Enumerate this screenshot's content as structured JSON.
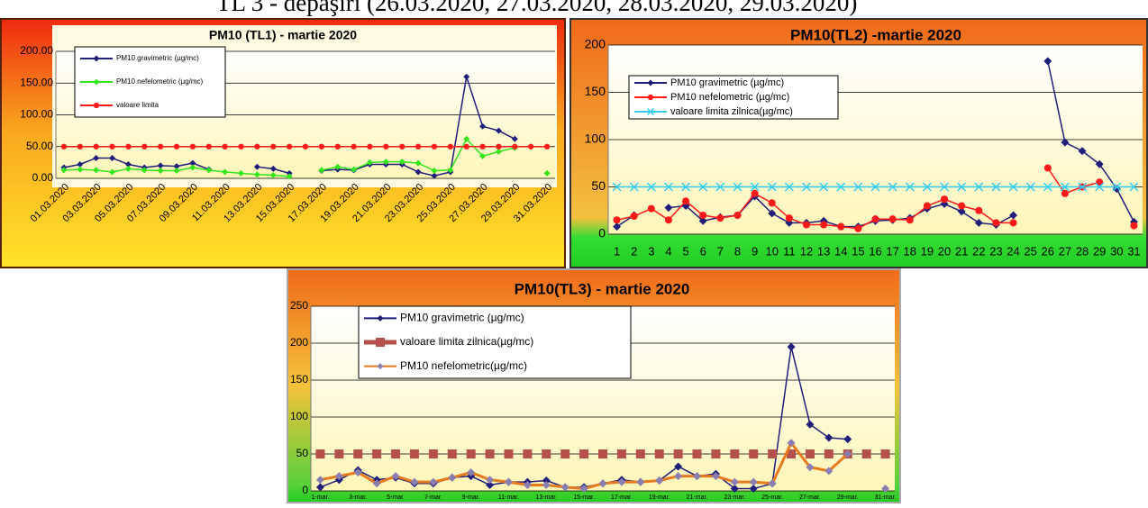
{
  "caption": "TL 3 - depaşiri (26.03.2020, 27.03.2020, 28.03.2020, 29.03.2020)",
  "chart_data": [
    {
      "type": "line",
      "title": "PM10 (TL1) -  martie 2020",
      "categories": [
        "01.03.2020",
        null,
        "03.03.2020",
        null,
        "05.03.2020",
        null,
        "07.03.2020",
        null,
        "09.03.2020",
        null,
        "11.03.2020",
        null,
        "13.03.2020",
        null,
        "15.03.2020",
        null,
        "17.03.2020",
        null,
        "19.03.2020",
        null,
        "21.03.2020",
        null,
        "23.03.2020",
        null,
        "25.03.2020",
        null,
        "27.03.2020",
        null,
        "29.03.2020",
        null,
        "31.03.2020"
      ],
      "ylim": [
        0,
        200
      ],
      "yticks": [
        {
          "value": 0,
          "label": "0.00"
        },
        {
          "value": 50,
          "label": "50.00"
        },
        {
          "value": 100,
          "label": "100.00"
        },
        {
          "value": 150,
          "label": "150.00"
        },
        {
          "value": 200,
          "label": "200.00"
        }
      ],
      "grid": true,
      "series": [
        {
          "name": "PM10   gravimetric  (µg/mc)",
          "color": "#1f1f7a",
          "marker": "diamond",
          "values": [
            17,
            22,
            32,
            32,
            22,
            17,
            20,
            19,
            24,
            14,
            null,
            null,
            18,
            15,
            8,
            null,
            12,
            14,
            13,
            22,
            22,
            22,
            10,
            4,
            10,
            160,
            82,
            75,
            62,
            null,
            null
          ]
        },
        {
          "name": "PM10 nefelometric (µg/mc)",
          "color": "#33e61a",
          "marker": "diamond",
          "values": [
            13,
            14,
            13,
            10,
            15,
            13,
            12,
            12,
            17,
            13,
            10,
            8,
            6,
            5,
            3,
            null,
            13,
            18,
            14,
            25,
            26,
            26,
            24,
            12,
            13,
            62,
            35,
            42,
            48,
            null,
            8
          ]
        },
        {
          "name": "valoare limita",
          "color": "#ff1a1a",
          "marker": "circle",
          "values": [
            50,
            50,
            50,
            50,
            50,
            50,
            50,
            50,
            50,
            50,
            50,
            50,
            50,
            50,
            50,
            50,
            50,
            50,
            50,
            50,
            50,
            50,
            50,
            50,
            50,
            50,
            50,
            50,
            50,
            50,
            50
          ]
        }
      ]
    },
    {
      "type": "line",
      "title": "PM10(TL2) -martie 2020",
      "categories": [
        "1",
        "2",
        "3",
        "4",
        "5",
        "6",
        "7",
        "8",
        "9",
        "10",
        "11",
        "12",
        "13",
        "14",
        "15",
        "16",
        "17",
        "18",
        "19",
        "20",
        "21",
        "22",
        "23",
        "24",
        "25",
        "26",
        "27",
        "28",
        "29",
        "30",
        "31"
      ],
      "ylim": [
        0,
        200
      ],
      "yticks": [
        0,
        50,
        100,
        150,
        200
      ],
      "grid": true,
      "series": [
        {
          "name": "PM10    gravimetric  (µg/mc)",
          "color": "#1f1f7a",
          "marker": "diamond",
          "values": [
            8,
            20,
            null,
            28,
            30,
            14,
            18,
            20,
            40,
            22,
            12,
            12,
            14,
            8,
            8,
            14,
            15,
            17,
            27,
            32,
            24,
            12,
            10,
            20,
            null,
            183,
            97,
            88,
            74,
            48,
            13
          ]
        },
        {
          "name": "PM10 nefelometric (µg/mc)",
          "color": "#ff1a1a",
          "marker": "circle",
          "values": [
            15,
            19,
            27,
            15,
            35,
            20,
            17,
            20,
            43,
            33,
            17,
            10,
            10,
            8,
            6,
            16,
            16,
            15,
            30,
            37,
            30,
            25,
            12,
            12,
            null,
            70,
            43,
            50,
            55,
            null,
            9
          ]
        },
        {
          "name": "valoare limita zilnica(µg/mc)",
          "color": "#33ccee",
          "marker": "x",
          "values": [
            50,
            50,
            50,
            50,
            50,
            50,
            50,
            50,
            50,
            50,
            50,
            50,
            50,
            50,
            50,
            50,
            50,
            50,
            50,
            50,
            50,
            50,
            50,
            50,
            50,
            50,
            50,
            50,
            50,
            50,
            50
          ]
        }
      ]
    },
    {
      "type": "line",
      "title": "PM10(TL3) - martie 2020",
      "categories": [
        "1-mar.",
        null,
        "3-mar.",
        null,
        "5-mar.",
        null,
        "7-mar.",
        null,
        "9-mar.",
        null,
        "11-mar.",
        null,
        "13-mar.",
        null,
        "15-mar.",
        null,
        "17-mar.",
        null,
        "19-mar.",
        null,
        "21-mar.",
        null,
        "23-mar.",
        null,
        "25-mar.",
        null,
        "27-mar.",
        null,
        "29-mar.",
        null,
        "31-mar."
      ],
      "ylim": [
        0,
        250
      ],
      "yticks": [
        0,
        50,
        100,
        150,
        200,
        250
      ],
      "grid": true,
      "series": [
        {
          "name": "PM10    gravimetric  (µg/mc)",
          "color": "#1f1f7a",
          "marker": "diamond",
          "values": [
            5,
            15,
            28,
            15,
            18,
            10,
            10,
            18,
            20,
            8,
            12,
            12,
            14,
            5,
            5,
            10,
            15,
            12,
            14,
            33,
            20,
            23,
            3,
            3,
            10,
            195,
            90,
            72,
            70,
            null,
            null
          ]
        },
        {
          "name": "valoare limita zilnica(µg/mc)",
          "color": "#b5504a",
          "marker": "square",
          "values": [
            50,
            50,
            50,
            50,
            50,
            50,
            50,
            50,
            50,
            50,
            50,
            50,
            50,
            50,
            50,
            50,
            50,
            50,
            50,
            50,
            50,
            50,
            50,
            50,
            50,
            50,
            50,
            50,
            50,
            50,
            50
          ]
        },
        {
          "name": "PM10 nefelometric(µg/mc)",
          "color": "#e87a1e",
          "marker": "diamond",
          "values": [
            15,
            20,
            25,
            10,
            20,
            12,
            12,
            18,
            25,
            15,
            12,
            8,
            8,
            5,
            3,
            10,
            12,
            12,
            14,
            20,
            20,
            20,
            12,
            12,
            10,
            65,
            32,
            27,
            50,
            null,
            3
          ]
        }
      ]
    }
  ]
}
